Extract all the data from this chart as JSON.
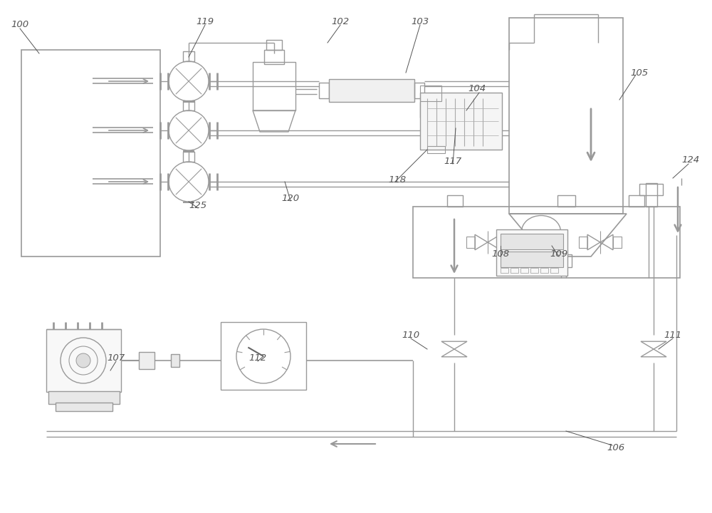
{
  "bg_color": "#ffffff",
  "lc": "#999999",
  "dc": "#666666",
  "tc": "#555555",
  "figsize": [
    10.0,
    7.2
  ],
  "dpi": 100
}
